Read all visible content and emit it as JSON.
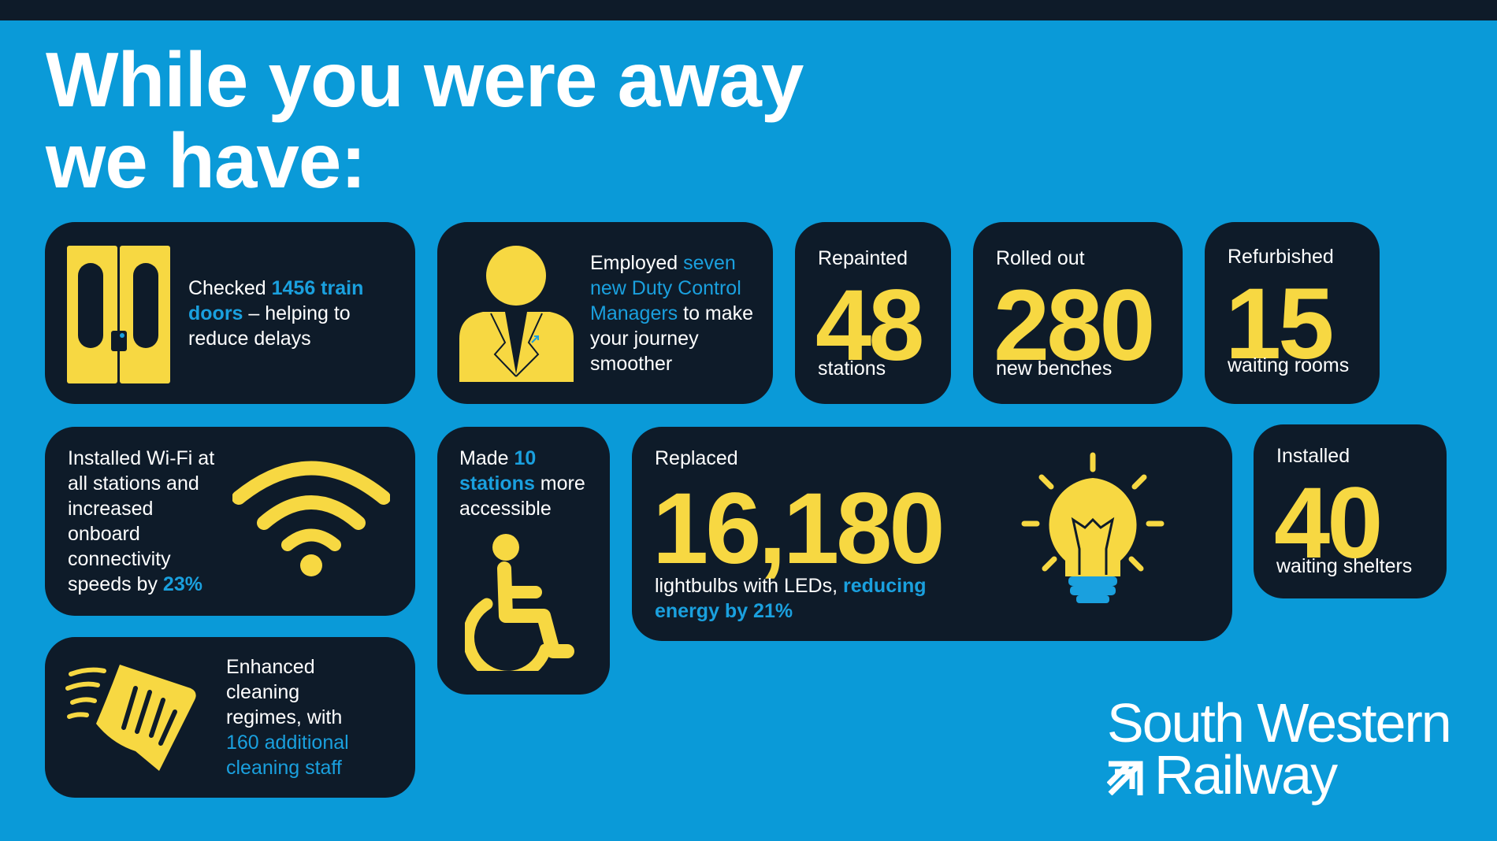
{
  "title": {
    "line1": "While you were away",
    "line2": "we have:"
  },
  "colors": {
    "background": "#0a9ad8",
    "card": "#0e1b29",
    "accent": "#f7d842",
    "highlight": "#1aa0de"
  },
  "cards": {
    "doors": {
      "icon": "train-doors-icon",
      "t1": "Checked ",
      "h1": "1456 train doors",
      "t2": " – helping to reduce delays"
    },
    "managers": {
      "icon": "manager-person-icon",
      "t1": "Employed ",
      "h1": "seven new Duty Control Managers",
      "t2": " to make your journey smoother"
    },
    "stations": {
      "label": "Repainted",
      "number": "48",
      "unit": "stations"
    },
    "benches": {
      "label": "Rolled out",
      "number": "280",
      "unit": "new benches"
    },
    "waiting_rooms": {
      "label": "Refurbished",
      "number": "15",
      "unit": "waiting rooms"
    },
    "wifi": {
      "icon": "wifi-icon",
      "t1": "Installed Wi-Fi at all stations and increased onboard connectivity speeds by ",
      "h1": "23%"
    },
    "accessible": {
      "icon": "wheelchair-icon",
      "t1": "Made ",
      "h1": "10 stations",
      "t2": " more accessible"
    },
    "lightbulbs": {
      "icon": "lightbulb-icon",
      "label": "Replaced",
      "number": "16,180",
      "t1": "lightbulbs with LEDs, ",
      "h1": "reducing energy by 21%"
    },
    "shelters": {
      "label": "Installed",
      "number": "40",
      "unit": "waiting shelters"
    },
    "cleaning": {
      "icon": "cleaning-hand-icon",
      "t1": "Enhanced cleaning regimes, with ",
      "h1": "160 additional cleaning staff"
    }
  },
  "logo": {
    "line1": "South Western",
    "line2": "Railway"
  }
}
